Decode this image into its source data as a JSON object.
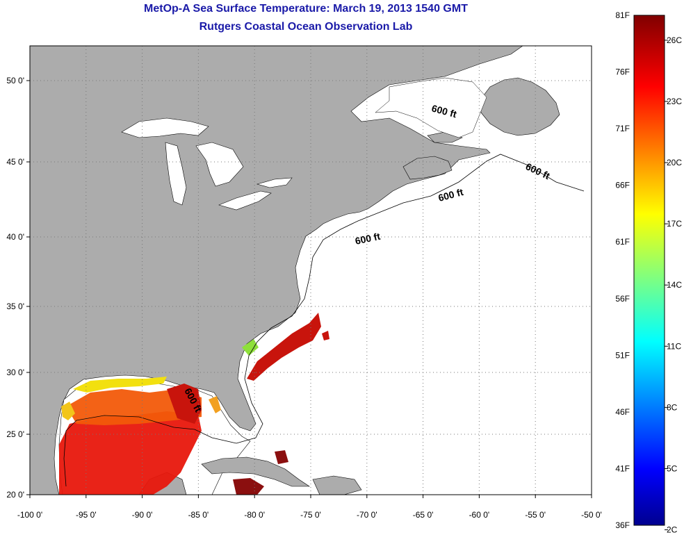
{
  "header": {
    "title": "MetOp-A Sea Surface Temperature:  March 19, 2013 1540 GMT",
    "subtitle": "Rutgers Coastal Ocean Observation Lab"
  },
  "map": {
    "lon_range": [
      -100,
      -50
    ],
    "lat_range": [
      20,
      52.5
    ],
    "lon_ticks": [
      "-100 0'",
      "-95 0'",
      "-90 0'",
      "-85 0'",
      "-80 0'",
      "-75 0'",
      "-70 0'",
      "-65 0'",
      "-60 0'",
      "-55 0'",
      "-50 0'"
    ],
    "lat_ticks": [
      "20 0'",
      "25 0'",
      "30 0'",
      "35 0'",
      "40 0'",
      "45 0'",
      "50 0'"
    ],
    "contour_labels": [
      "600 ft",
      "600 ft",
      "600 ft",
      "600 ft",
      "600 ft"
    ],
    "colors": {
      "land": "#acacac",
      "ocean_missing": "#ffffff",
      "grid": "#666666"
    }
  },
  "colorbar": {
    "f_labels": [
      "81F",
      "76F",
      "71F",
      "66F",
      "61F",
      "56F",
      "51F",
      "46F",
      "41F",
      "36F"
    ],
    "c_labels": [
      "26C",
      "23C",
      "20C",
      "17C",
      "14C",
      "11C",
      "8C",
      "5C",
      "2C"
    ],
    "colormap": "jet"
  }
}
